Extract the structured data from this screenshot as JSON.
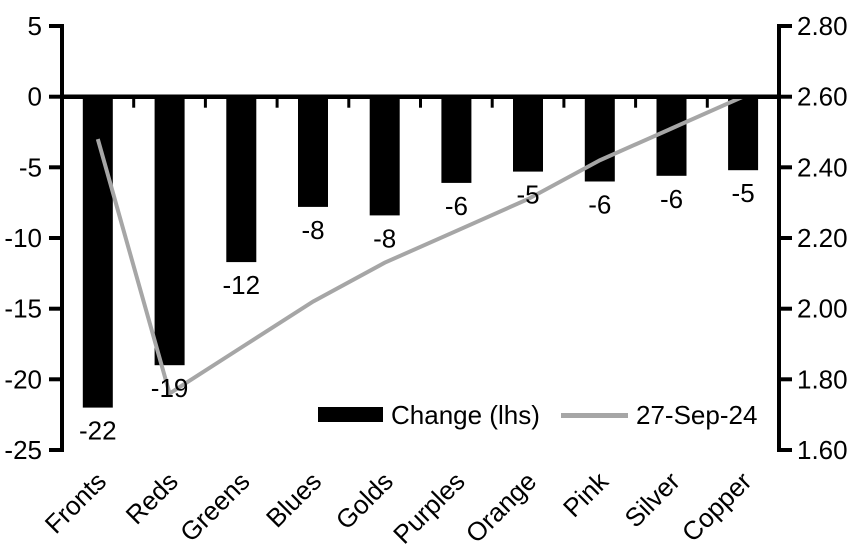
{
  "chart_data": {
    "type": "bar",
    "title": "",
    "categories": [
      "Fronts",
      "Reds",
      "Greens",
      "Blues",
      "Golds",
      "Purples",
      "Orange",
      "Pink",
      "Silver",
      "Copper"
    ],
    "series": [
      {
        "name": "Change (lhs)",
        "kind": "bar",
        "axis": "left",
        "color": "#000000",
        "values": [
          -22,
          -19,
          -12,
          -8,
          -8,
          -6,
          -5,
          -6,
          -6,
          -5
        ],
        "values_precise": [
          -22,
          -19,
          -11.7,
          -7.8,
          -8.4,
          -6.1,
          -5.3,
          -6.0,
          -5.6,
          -5.2
        ],
        "labels": [
          "-22",
          "-19",
          "-12",
          "-8",
          "-8",
          "-6",
          "-5",
          "-6",
          "-6",
          "-5"
        ]
      },
      {
        "name": "27-Sep-24",
        "kind": "line",
        "axis": "right",
        "color": "#a6a6a6",
        "values": [
          2.48,
          1.76,
          1.89,
          2.02,
          2.13,
          2.22,
          2.31,
          2.42,
          2.51,
          2.6
        ]
      }
    ],
    "left_axis": {
      "min": -25,
      "max": 5,
      "step": 5,
      "tick_values": [
        5,
        0,
        -5,
        -10,
        -15,
        -20,
        -25
      ],
      "tick_labels": [
        "5",
        "0",
        "-5",
        "-10",
        "-15",
        "-20",
        "-25"
      ]
    },
    "right_axis": {
      "min": 1.6,
      "max": 2.8,
      "step": 0.2,
      "tick_values": [
        2.8,
        2.6,
        2.4,
        2.2,
        2.0,
        1.8,
        1.6
      ],
      "tick_labels": [
        "2.80",
        "2.60",
        "2.40",
        "2.20",
        "2.00",
        "1.80",
        "1.60"
      ]
    },
    "legend": {
      "position": "inside-bottom",
      "items": [
        {
          "label": "Change (lhs)",
          "swatch": "bar"
        },
        {
          "label": "27-Sep-24",
          "swatch": "line"
        }
      ]
    },
    "grid": false,
    "background": "#ffffff",
    "axis_color": "#000000"
  }
}
